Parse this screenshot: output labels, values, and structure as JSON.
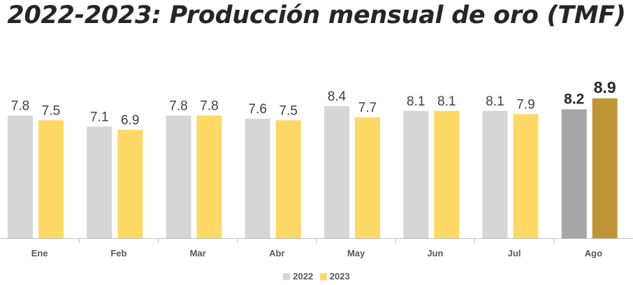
{
  "chart_data": {
    "type": "bar",
    "title": "2022-2023: Producción mensual de oro (TMF)",
    "xlabel": "",
    "ylabel": "",
    "ylim": [
      0,
      9.6
    ],
    "grid": false,
    "legend_position": "bottom-center",
    "categories": [
      "Ene",
      "Feb",
      "Mar",
      "Abr",
      "May",
      "Jun",
      "Jul",
      "Ago"
    ],
    "series": [
      {
        "name": "2022",
        "values": [
          7.8,
          7.1,
          7.8,
          7.6,
          8.4,
          8.1,
          8.1,
          8.2
        ],
        "labels": [
          "7.8",
          "7.1",
          "7.8",
          "7.6",
          "8.4",
          "8.1",
          "8.1",
          "8.2"
        ],
        "color": "#d6d6d6",
        "highlight_color": "#a6a6a6"
      },
      {
        "name": "2023",
        "values": [
          7.5,
          6.9,
          7.8,
          7.5,
          7.7,
          8.1,
          7.9,
          8.9
        ],
        "labels": [
          "7.5",
          "6.9",
          "7.8",
          "7.5",
          "7.7",
          "8.1",
          "7.9",
          "8.9"
        ],
        "color": "#ffd966",
        "highlight_color": "#bf9637"
      }
    ],
    "highlight_category": "Ago"
  },
  "colors": {
    "axis": "#bfbfbf",
    "label_text": "#404040",
    "category_text": "#595959"
  }
}
